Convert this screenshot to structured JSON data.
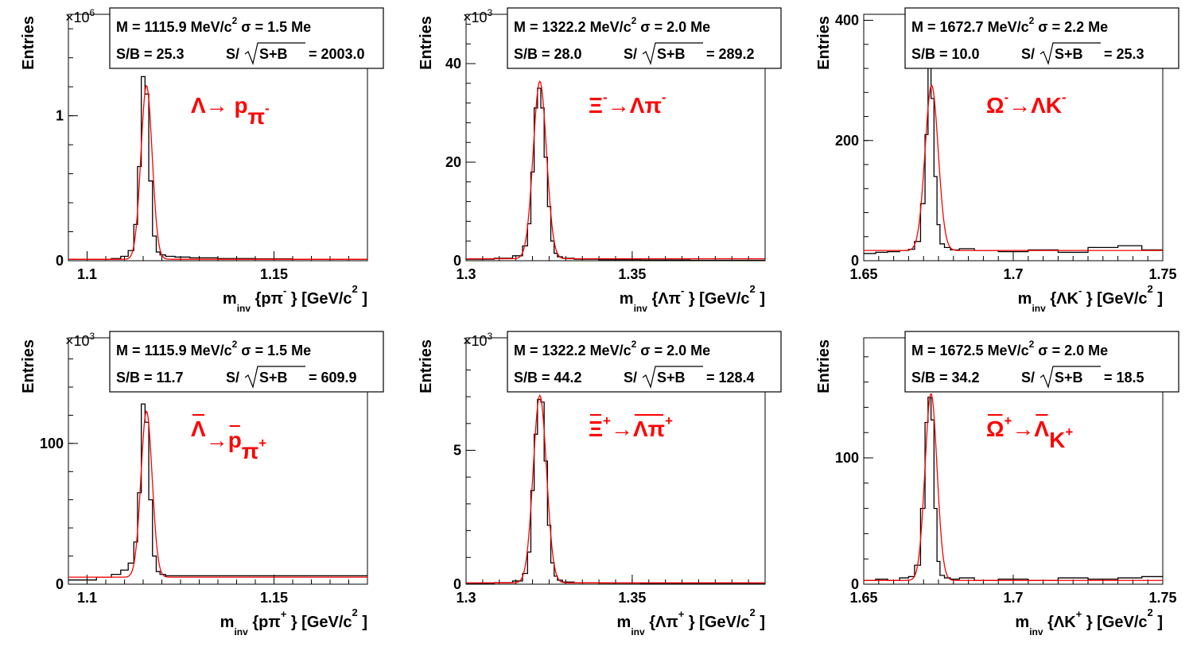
{
  "colors": {
    "histogram": "#000000",
    "fit": "#ff0000",
    "decay_label": "#ff0000",
    "background": "#ffffff"
  },
  "chart_data": [
    {
      "type": "line",
      "ylabel": "Entries",
      "xlabel": {
        "main": "m",
        "sub": "inv",
        "arg": "{pπ",
        "arg_sup": "-",
        "tail": "} [GeV/c",
        "tail_sup": "2",
        "close": "]"
      },
      "y_exponent": {
        "base": "×10",
        "exp": "6"
      },
      "decay": {
        "parts": [
          "Λ→ p",
          "π"
        ],
        "sups": [
          "",
          "-"
        ],
        "overlines": []
      },
      "stats": {
        "line1": "M = 1115.9 MeV/c",
        "line1_sup": "2",
        "line1_tail": "σ = 1.5 Me",
        "sb": "S/B = 25.3",
        "sig": "S/",
        "sig_arg": "S+B",
        "sig_val": "= 2003.0"
      },
      "xlim": [
        1.095,
        1.175
      ],
      "ylim": [
        0,
        1.7
      ],
      "xticks": [
        1.1,
        1.15
      ],
      "xtick_labels": [
        "1.1",
        "1.15"
      ],
      "yticks": [
        0,
        1
      ],
      "ytick_labels": [
        "0",
        "1"
      ],
      "x_axis_unit": "GeV/c^2",
      "y_scale_note": "Entries ×10^6",
      "peak": {
        "mean": 1.1159,
        "sigma": 0.0015,
        "height": 1.2,
        "background": 0.01
      },
      "histogram": {
        "x": [
          1.105,
          1.108,
          1.11,
          1.112,
          1.113,
          1.114,
          1.115,
          1.116,
          1.117,
          1.118,
          1.119,
          1.12,
          1.122,
          1.125,
          1.13,
          1.14,
          1.15,
          1.16
        ],
        "y": [
          0.01,
          0.015,
          0.03,
          0.07,
          0.25,
          0.65,
          1.27,
          1.15,
          0.55,
          0.17,
          0.06,
          0.04,
          0.03,
          0.025,
          0.02,
          0.015,
          0.013,
          0.01
        ]
      }
    },
    {
      "type": "line",
      "ylabel": "Entries",
      "xlabel": {
        "main": "m",
        "sub": "inv",
        "arg": "{Λπ",
        "arg_sup": "-",
        "tail": "} [GeV/c",
        "tail_sup": "2",
        "close": "]"
      },
      "y_exponent": {
        "base": "×10",
        "exp": "3"
      },
      "decay": {
        "parts": [
          "Ξ",
          "→Λπ"
        ],
        "sups": [
          "-",
          "-"
        ],
        "overlines": []
      },
      "stats": {
        "line1": "M = 1322.2 MeV/c",
        "line1_sup": "2",
        "line1_tail": "σ = 2.0 Me",
        "sb": "S/B = 28.0",
        "sig": "S/",
        "sig_arg": "S+B",
        "sig_val": "= 289.2"
      },
      "xlim": [
        1.3,
        1.39
      ],
      "ylim": [
        0,
        50
      ],
      "xticks": [
        1.3,
        1.35
      ],
      "xtick_labels": [
        "1.3",
        "1.35"
      ],
      "yticks": [
        0,
        20,
        40
      ],
      "ytick_labels": [
        "0",
        "20",
        "40"
      ],
      "x_axis_unit": "GeV/c^2",
      "y_scale_note": "Entries ×10^3",
      "peak": {
        "mean": 1.3222,
        "sigma": 0.002,
        "height": 36,
        "background": 0.4
      },
      "histogram": {
        "x": [
          1.305,
          1.312,
          1.316,
          1.318,
          1.319,
          1.32,
          1.321,
          1.322,
          1.323,
          1.324,
          1.325,
          1.326,
          1.327,
          1.328,
          1.33,
          1.335,
          1.345,
          1.36,
          1.375
        ],
        "y": [
          0.3,
          0.5,
          1.0,
          3.0,
          7.5,
          18,
          31,
          35,
          31,
          21,
          11,
          4,
          1.5,
          0.8,
          0.5,
          0.3,
          0.2,
          0.15,
          0.1
        ]
      }
    },
    {
      "type": "line",
      "ylabel": "Entries",
      "xlabel": {
        "main": "m",
        "sub": "inv",
        "arg": "{ΛK",
        "arg_sup": "-",
        "tail": "} [GeV/c",
        "tail_sup": "2",
        "close": "]"
      },
      "y_exponent": null,
      "decay": {
        "parts": [
          "Ω",
          "→ΛK"
        ],
        "sups": [
          "-",
          "-"
        ],
        "overlines": []
      },
      "stats": {
        "line1": "M = 1672.7 MeV/c",
        "line1_sup": "2",
        "line1_tail": "σ = 2.2 Me",
        "sb": "S/B = 10.0",
        "sig": "S/",
        "sig_arg": "S+B",
        "sig_val": "= 25.3"
      },
      "xlim": [
        1.65,
        1.75
      ],
      "ylim": [
        0,
        410
      ],
      "xticks": [
        1.65,
        1.7,
        1.75
      ],
      "xtick_labels": [
        "1.65",
        "1.7",
        "1.75"
      ],
      "yticks": [
        0,
        200,
        400
      ],
      "ytick_labels": [
        "0",
        "200",
        "400"
      ],
      "x_axis_unit": "GeV/c^2",
      "y_scale_note": "",
      "peak": {
        "mean": 1.6727,
        "sigma": 0.0022,
        "height": 275,
        "background": 17
      },
      "histogram": {
        "x": [
          1.652,
          1.656,
          1.66,
          1.664,
          1.666,
          1.668,
          1.67,
          1.671,
          1.672,
          1.673,
          1.674,
          1.675,
          1.676,
          1.678,
          1.68,
          1.684,
          1.69,
          1.7,
          1.71,
          1.72,
          1.73,
          1.74,
          1.746
        ],
        "y": [
          12,
          14,
          15,
          17,
          19,
          32,
          95,
          210,
          322,
          270,
          140,
          60,
          28,
          22,
          18,
          20,
          17,
          15,
          18,
          14,
          22,
          25,
          18
        ]
      }
    },
    {
      "type": "line",
      "ylabel": "Entries",
      "xlabel": {
        "main": "m",
        "sub": "inv",
        "arg": "{pπ",
        "arg_sup": "+",
        "tail": "} [GeV/c",
        "tail_sup": "2",
        "close": "]"
      },
      "y_exponent": {
        "base": "×10",
        "exp": "3"
      },
      "decay": {
        "parts": [
          "Λ",
          "→p",
          "π"
        ],
        "sups": [
          "",
          "",
          "+"
        ],
        "overlines": [
          0,
          1
        ]
      },
      "stats": {
        "line1": "M = 1115.9 MeV/c",
        "line1_sup": "2",
        "line1_tail": "σ = 1.5 Me",
        "sb": "S/B = 11.7",
        "sig": "S/",
        "sig_arg": "S+B",
        "sig_val": "= 609.9"
      },
      "xlim": [
        1.095,
        1.175
      ],
      "ylim": [
        0,
        175
      ],
      "xticks": [
        1.1,
        1.15
      ],
      "xtick_labels": [
        "1.1",
        "1.15"
      ],
      "yticks": [
        0,
        100
      ],
      "ytick_labels": [
        "0",
        "100"
      ],
      "x_axis_unit": "GeV/c^2",
      "y_scale_note": "Entries ×10^3",
      "peak": {
        "mean": 1.1159,
        "sigma": 0.0015,
        "height": 118,
        "background": 5
      },
      "histogram": {
        "x": [
          1.1,
          1.105,
          1.108,
          1.11,
          1.112,
          1.113,
          1.114,
          1.115,
          1.116,
          1.117,
          1.118,
          1.119,
          1.12,
          1.122,
          1.125,
          1.13,
          1.14,
          1.15,
          1.16,
          1.17
        ],
        "y": [
          3,
          5,
          7,
          10,
          15,
          30,
          65,
          128,
          115,
          60,
          20,
          9,
          7,
          6,
          6,
          6,
          6,
          6,
          6,
          6
        ]
      }
    },
    {
      "type": "line",
      "ylabel": "Entries",
      "xlabel": {
        "main": "m",
        "sub": "inv",
        "arg": "{Λπ",
        "arg_sup": "+",
        "tail": "} [GeV/c",
        "tail_sup": "2",
        "close": "]"
      },
      "y_exponent": {
        "base": "×10",
        "exp": "3"
      },
      "decay": {
        "parts": [
          "Ξ",
          "→Λπ"
        ],
        "sups": [
          "+",
          "+"
        ],
        "overlines": [
          0,
          1
        ]
      },
      "stats": {
        "line1": "M = 1322.2 MeV/c",
        "line1_sup": "2",
        "line1_tail": "σ = 2.0 Me",
        "sb": "S/B = 44.2",
        "sig": "S/",
        "sig_arg": "S+B",
        "sig_val": "= 128.4"
      },
      "xlim": [
        1.3,
        1.39
      ],
      "ylim": [
        0,
        9.2
      ],
      "xticks": [
        1.3,
        1.35
      ],
      "xtick_labels": [
        "1.3",
        "1.35"
      ],
      "yticks": [
        0,
        5
      ],
      "ytick_labels": [
        "0",
        "5"
      ],
      "x_axis_unit": "GeV/c^2",
      "y_scale_note": "Entries ×10^3",
      "peak": {
        "mean": 1.3222,
        "sigma": 0.002,
        "height": 7.0,
        "background": 0.05
      },
      "histogram": {
        "x": [
          1.305,
          1.312,
          1.316,
          1.318,
          1.319,
          1.32,
          1.321,
          1.322,
          1.323,
          1.324,
          1.325,
          1.326,
          1.327,
          1.328,
          1.33,
          1.335,
          1.345,
          1.36,
          1.375
        ],
        "y": [
          0.03,
          0.06,
          0.12,
          0.4,
          1.2,
          3.5,
          5.6,
          6.9,
          6.8,
          4.6,
          2.2,
          0.8,
          0.3,
          0.15,
          0.08,
          0.05,
          0.04,
          0.03,
          0.02
        ]
      }
    },
    {
      "type": "line",
      "ylabel": "Entries",
      "xlabel": {
        "main": "m",
        "sub": "inv",
        "arg": "{ΛK",
        "arg_sup": "+",
        "tail": "} [GeV/c",
        "tail_sup": "2",
        "close": "]"
      },
      "y_exponent": null,
      "decay": {
        "parts": [
          "Ω",
          "→Λ",
          "K"
        ],
        "sups": [
          "+",
          "",
          "+"
        ],
        "overlines": [
          0,
          1
        ]
      },
      "stats": {
        "line1": "M = 1672.5 MeV/c",
        "line1_sup": "2",
        "line1_tail": "σ = 2.0 Me",
        "sb": "S/B = 34.2",
        "sig": "S/",
        "sig_arg": "S+B",
        "sig_val": "= 18.5"
      },
      "xlim": [
        1.65,
        1.75
      ],
      "ylim": [
        0,
        195
      ],
      "xticks": [
        1.65,
        1.7,
        1.75
      ],
      "xtick_labels": [
        "1.65",
        "1.7",
        "1.75"
      ],
      "yticks": [
        0,
        100
      ],
      "ytick_labels": [
        "0",
        "100"
      ],
      "x_axis_unit": "GeV/c^2",
      "y_scale_note": "",
      "peak": {
        "mean": 1.6725,
        "sigma": 0.002,
        "height": 148,
        "background": 3
      },
      "histogram": {
        "x": [
          1.652,
          1.656,
          1.66,
          1.664,
          1.666,
          1.668,
          1.67,
          1.671,
          1.672,
          1.673,
          1.674,
          1.675,
          1.676,
          1.678,
          1.68,
          1.684,
          1.69,
          1.7,
          1.71,
          1.72,
          1.73,
          1.74,
          1.746
        ],
        "y": [
          3,
          4,
          3,
          5,
          6,
          15,
          60,
          128,
          148,
          130,
          60,
          18,
          7,
          5,
          4,
          5,
          3,
          4,
          3,
          5,
          4,
          5,
          6
        ]
      }
    }
  ]
}
